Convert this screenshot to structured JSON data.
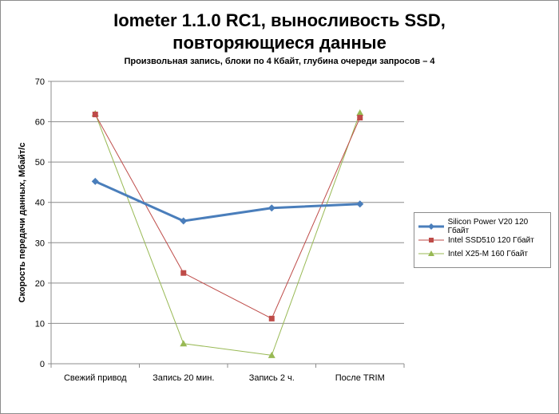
{
  "chart_data": {
    "type": "line",
    "title_lines": [
      "Iometer 1.1.0 RC1, выносливость SSD,",
      "повторяющиеся данные"
    ],
    "subtitle": "Произвольная  запись,  блоки по 4 Кбайт,  глубина очереди запросов  – 4",
    "ylabel": "Скорость  передачи данных, Мбайт/с",
    "xlabel": "",
    "categories": [
      "Свежий  привод",
      "Запись 20 мин.",
      "Запись 2 ч.",
      "После TRIM"
    ],
    "ylim": [
      0,
      70
    ],
    "yticks": [
      "0",
      "10",
      "20",
      "30",
      "40",
      "50",
      "60",
      "70"
    ],
    "grid": true,
    "legend_position": "right",
    "series": [
      {
        "name": "Silicon Power V20 120 Гбайт",
        "values": [
          45.2,
          35.4,
          38.6,
          39.6
        ],
        "color": "#4a7ebb",
        "marker": "diamond"
      },
      {
        "name": "Intel SSD510 120 Гбайт",
        "values": [
          61.8,
          22.5,
          11.2,
          61.0
        ],
        "color": "#be4b48",
        "marker": "square"
      },
      {
        "name": "Intel X25-M 160 Гбайт",
        "values": [
          62.0,
          5.0,
          2.1,
          62.2
        ],
        "color": "#98b954",
        "marker": "triangle"
      }
    ]
  }
}
